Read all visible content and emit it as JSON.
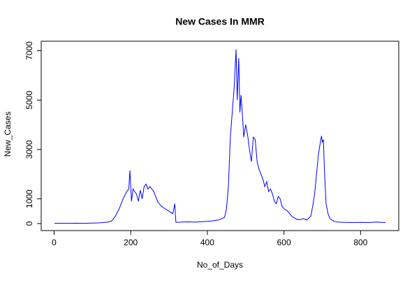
{
  "chart_data": {
    "type": "line",
    "title": "New Cases In MMR",
    "x_label": "No_of_Days",
    "y_label": "New_Cases",
    "x": [
      1,
      20,
      40,
      60,
      80,
      100,
      120,
      140,
      150,
      160,
      170,
      180,
      190,
      195,
      198,
      202,
      206,
      210,
      215,
      220,
      225,
      230,
      235,
      240,
      245,
      250,
      255,
      260,
      265,
      270,
      275,
      280,
      290,
      300,
      310,
      315,
      318,
      330,
      350,
      370,
      390,
      410,
      430,
      445,
      450,
      455,
      460,
      465,
      470,
      475,
      478,
      482,
      485,
      488,
      492,
      495,
      500,
      505,
      510,
      515,
      520,
      525,
      530,
      535,
      540,
      545,
      550,
      555,
      560,
      565,
      570,
      575,
      580,
      585,
      590,
      595,
      600,
      610,
      620,
      630,
      640,
      650,
      660,
      670,
      675,
      680,
      685,
      690,
      695,
      698,
      700,
      703,
      706,
      710,
      715,
      720,
      730,
      740,
      760,
      780,
      800,
      820,
      840,
      865
    ],
    "values": [
      10,
      12,
      8,
      15,
      10,
      20,
      30,
      60,
      100,
      300,
      600,
      1000,
      1300,
      1400,
      2150,
      900,
      1400,
      1300,
      1200,
      900,
      1350,
      1000,
      1500,
      1600,
      1400,
      1500,
      1400,
      1300,
      1100,
      900,
      800,
      700,
      600,
      500,
      400,
      800,
      50,
      60,
      70,
      60,
      80,
      100,
      150,
      250,
      600,
      1500,
      3500,
      4500,
      5500,
      7050,
      5000,
      6700,
      4500,
      5200,
      4300,
      3500,
      4000,
      3600,
      3000,
      2500,
      3500,
      3400,
      2500,
      2200,
      2000,
      1800,
      1500,
      1700,
      1300,
      1400,
      1200,
      900,
      800,
      1100,
      1000,
      700,
      600,
      500,
      300,
      200,
      150,
      200,
      150,
      300,
      700,
      1200,
      2000,
      2800,
      3300,
      3550,
      3300,
      3400,
      2000,
      800,
      400,
      200,
      100,
      60,
      50,
      40,
      50,
      40,
      60,
      40
    ],
    "color": "#0000ff",
    "xlim": [
      -33.6,
      899.6
    ],
    "xticks": [
      0,
      200,
      400,
      600,
      800
    ],
    "ylim": [
      -284,
      7384
    ],
    "yticks": [
      0,
      1000,
      3000,
      5000,
      7000
    ]
  }
}
